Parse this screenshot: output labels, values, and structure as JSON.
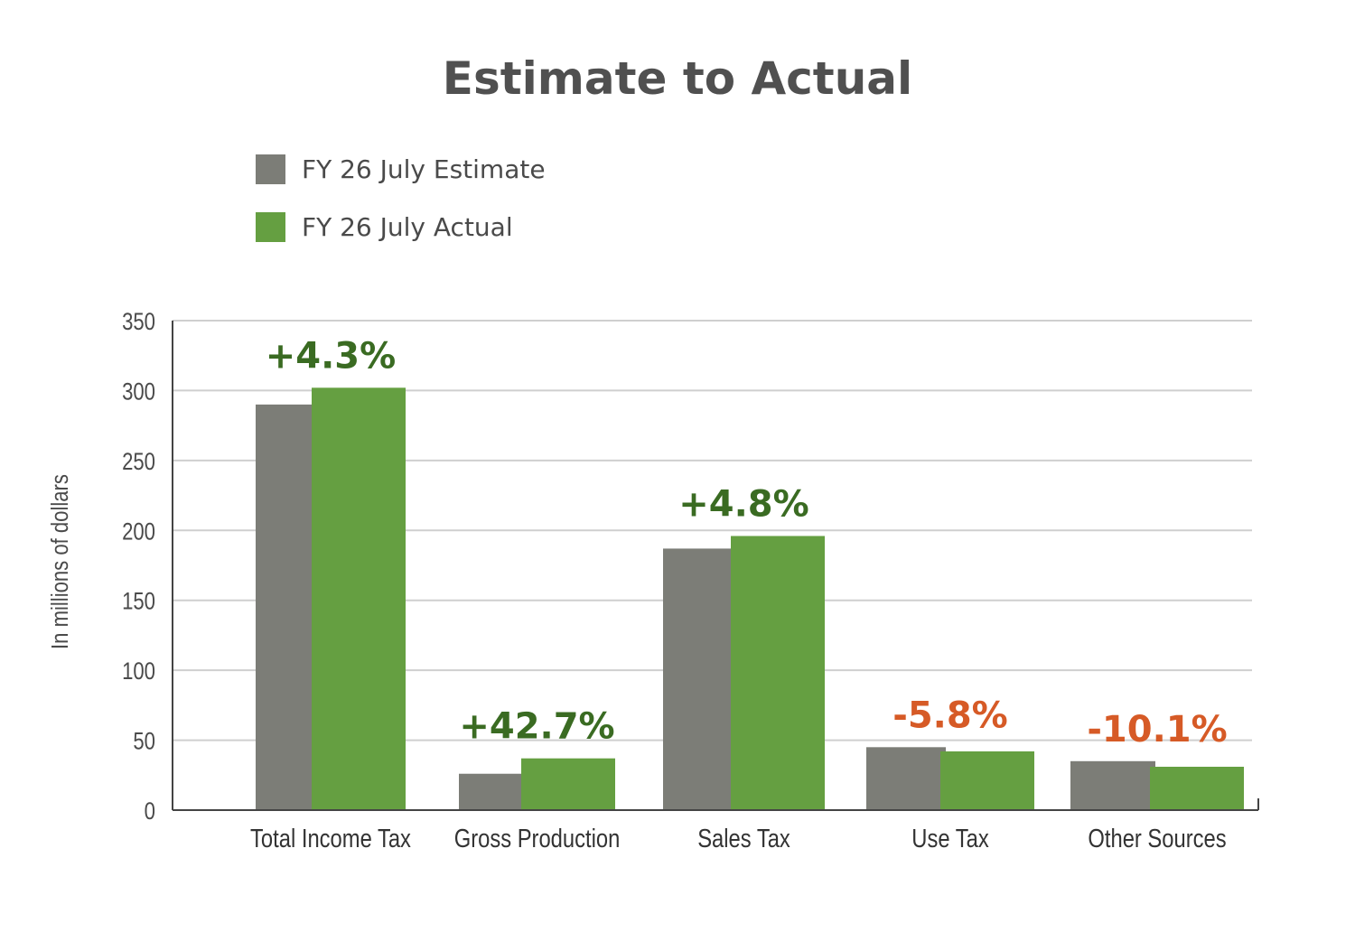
{
  "colors": {
    "estimate": "#7c7d77",
    "actual": "#659f41",
    "positive": "#3a6b22",
    "negative": "#d65a26",
    "grid": "#cfcfcf",
    "axis": "#444444",
    "text": "#4a4a4a"
  },
  "chart_data": {
    "type": "bar",
    "title": "Estimate to Actual",
    "ylabel": "In millions of dollars",
    "xlabel": "",
    "ylim": [
      0,
      350
    ],
    "yticks": [
      "0",
      "50",
      "100",
      "150",
      "200",
      "250",
      "300",
      "350"
    ],
    "grid": true,
    "legend_position": "top-left",
    "categories": [
      "Total Income Tax",
      "Gross Production",
      "Sales Tax",
      "Use Tax",
      "Other Sources"
    ],
    "series": [
      {
        "name": "FY 26 July Estimate",
        "values": [
          290,
          26,
          187,
          45,
          35
        ]
      },
      {
        "name": "FY 26 July Actual",
        "values": [
          302,
          37,
          196,
          42,
          31
        ]
      }
    ],
    "annotations": [
      "+4.3%",
      "+42.7%",
      "+4.8%",
      "-5.8%",
      "-10.1%"
    ],
    "annotation_sign": [
      "positive",
      "positive",
      "positive",
      "negative",
      "negative"
    ]
  }
}
